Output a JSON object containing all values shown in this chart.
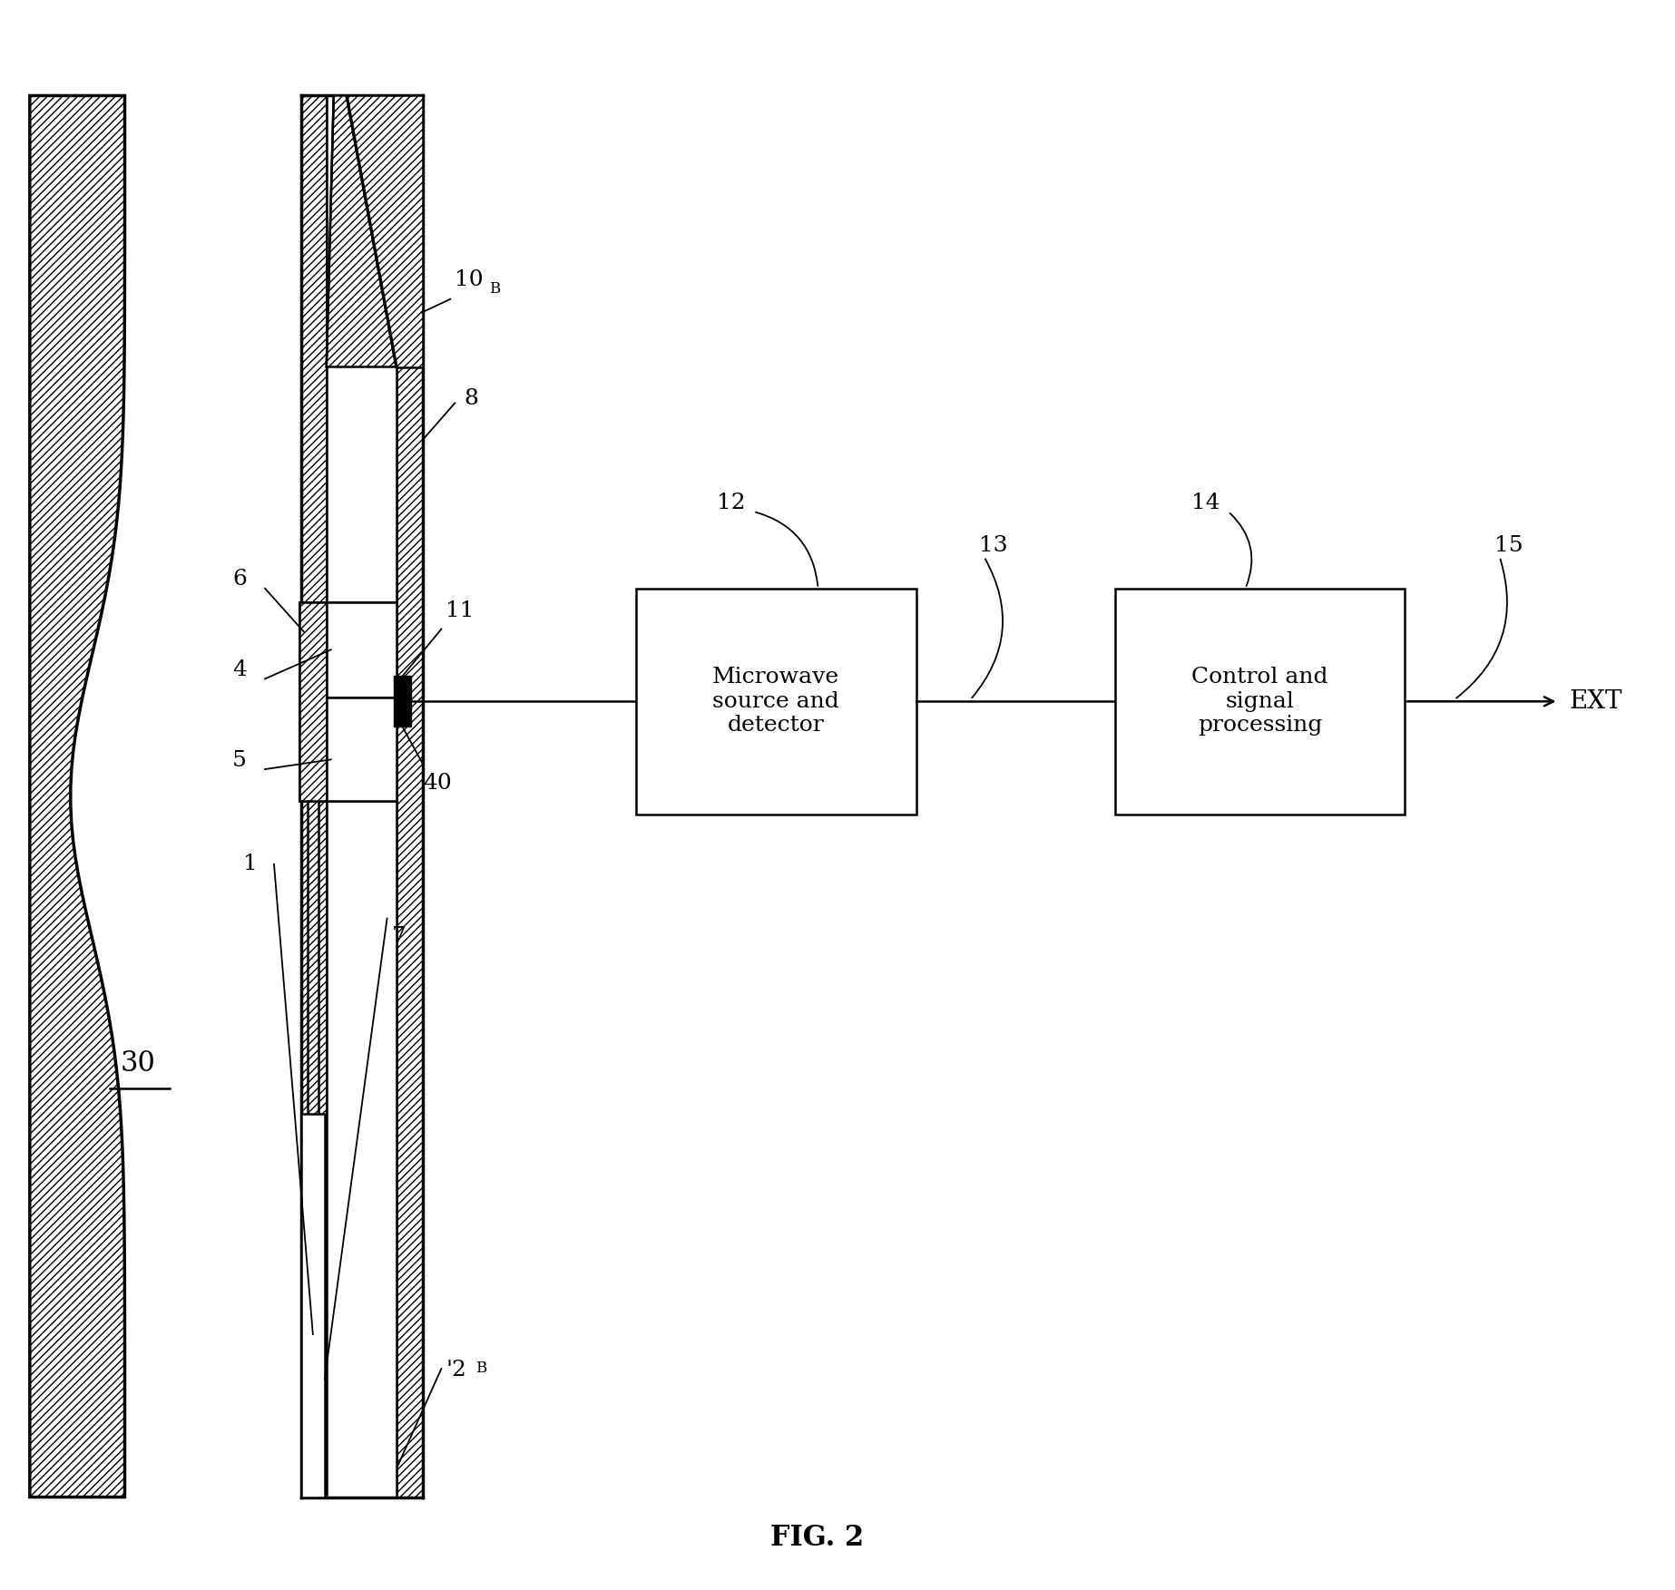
{
  "fig_width": 18.46,
  "fig_height": 17.53,
  "bg_color": "#ffffff",
  "title": "FIG. 2",
  "title_fontsize": 22,
  "label_fontsize": 18,
  "box1_text": "Microwave\nsource and\ndetector",
  "box2_text": "Control and\nsignal\nprocessing",
  "ext_text": "EXT",
  "label_30": "30",
  "label_10B_main": "10",
  "label_10B_sub": "B",
  "label_8": "8",
  "label_11": "11",
  "label_12": "12",
  "label_13": "13",
  "label_14": "14",
  "label_15": "15",
  "label_6": "6",
  "label_4": "4",
  "label_5": "5",
  "label_1": "1",
  "label_7": "7",
  "label_40": "40",
  "label_2B_main": "'2",
  "label_2B_sub": "B"
}
